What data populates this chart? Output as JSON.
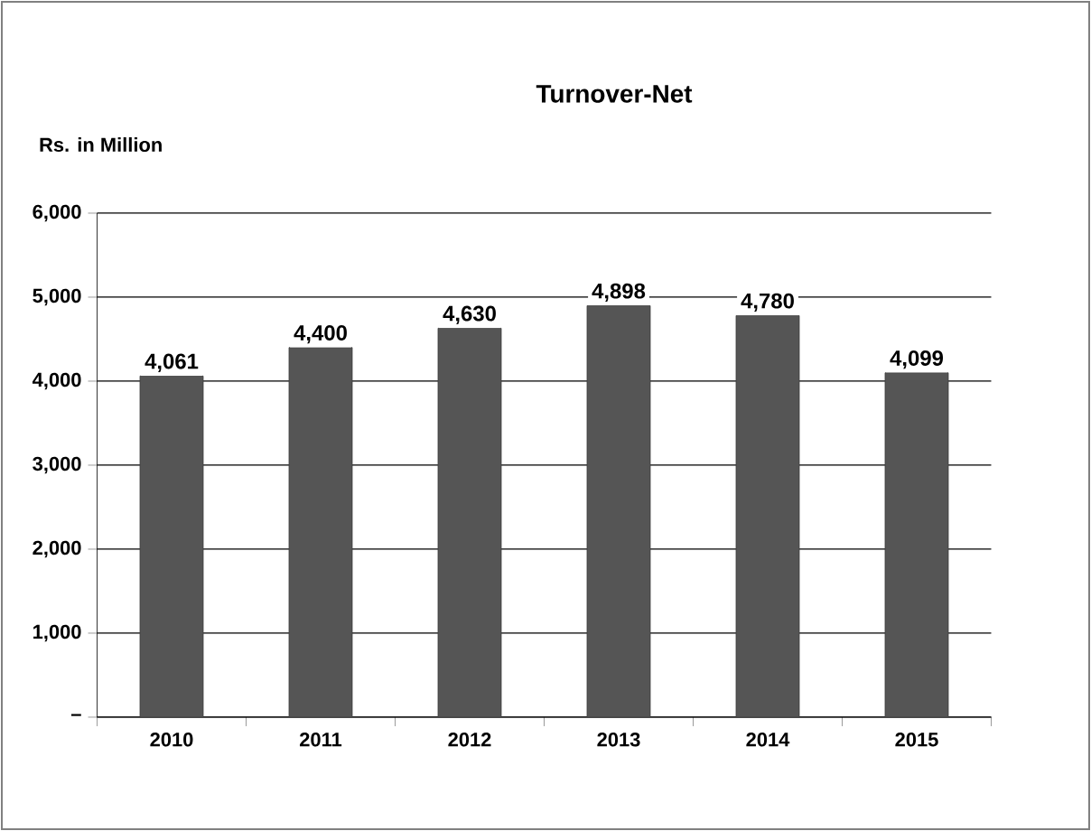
{
  "chart_data": {
    "type": "bar",
    "title": "Turnover-Net",
    "ylabel": "Rs. in Million",
    "categories": [
      "2010",
      "2011",
      "2012",
      "2013",
      "2014",
      "2015"
    ],
    "values": [
      4061,
      4400,
      4630,
      4898,
      4780,
      4099
    ],
    "value_labels": [
      "4,061",
      "4,400",
      "4,630",
      "4,898",
      "4,780",
      "4,099"
    ],
    "color": "#555555",
    "ylim": [
      0,
      6000
    ],
    "yticks": [
      {
        "value": 0,
        "label": "–"
      },
      {
        "value": 1000,
        "label": "1,000"
      },
      {
        "value": 2000,
        "label": "2,000"
      },
      {
        "value": 3000,
        "label": "3,000"
      },
      {
        "value": 4000,
        "label": "4,000"
      },
      {
        "value": 5000,
        "label": "5,000"
      },
      {
        "value": 6000,
        "label": "6,000"
      }
    ],
    "grid": "y"
  }
}
